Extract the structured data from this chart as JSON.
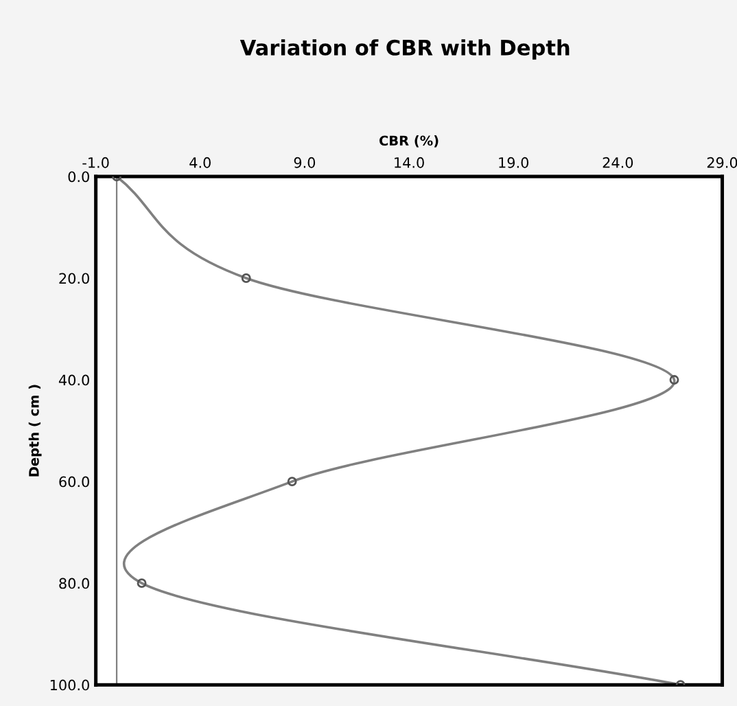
{
  "chart_data": {
    "type": "line",
    "title": "Variation of CBR with Depth",
    "xlabel": "CBR (%)",
    "ylabel": "Depth ( cm )",
    "x": [
      0.0,
      6.2,
      26.7,
      8.4,
      1.2,
      27.0
    ],
    "series": [
      {
        "color": "#808080",
        "values": [
          0,
          20,
          40,
          60,
          80,
          100
        ]
      }
    ],
    "xlim": [
      -1.0,
      29.0
    ],
    "xticks": [
      {
        "value": -1,
        "label": "-1.0"
      },
      {
        "value": 4,
        "label": "4.0"
      },
      {
        "value": 9,
        "label": "9.0"
      },
      {
        "value": 14,
        "label": "14.0"
      },
      {
        "value": 19,
        "label": "19.0"
      },
      {
        "value": 24,
        "label": "24.0"
      },
      {
        "value": 29,
        "label": "29.0"
      }
    ],
    "ylim": [
      100,
      0
    ],
    "yticks": [
      {
        "value": 0,
        "label": "0.0"
      },
      {
        "value": 20,
        "label": "20.0"
      },
      {
        "value": 40,
        "label": "40.0"
      },
      {
        "value": 60,
        "label": "60.0"
      },
      {
        "value": 80,
        "label": "80.0"
      },
      {
        "value": 100,
        "label": "100.0"
      }
    ],
    "ref_lines": [
      {
        "axis": "x",
        "value": 0,
        "color": "#808080"
      }
    ],
    "marker": "circle",
    "line_style": "solid",
    "grid": false,
    "legend": false
  }
}
